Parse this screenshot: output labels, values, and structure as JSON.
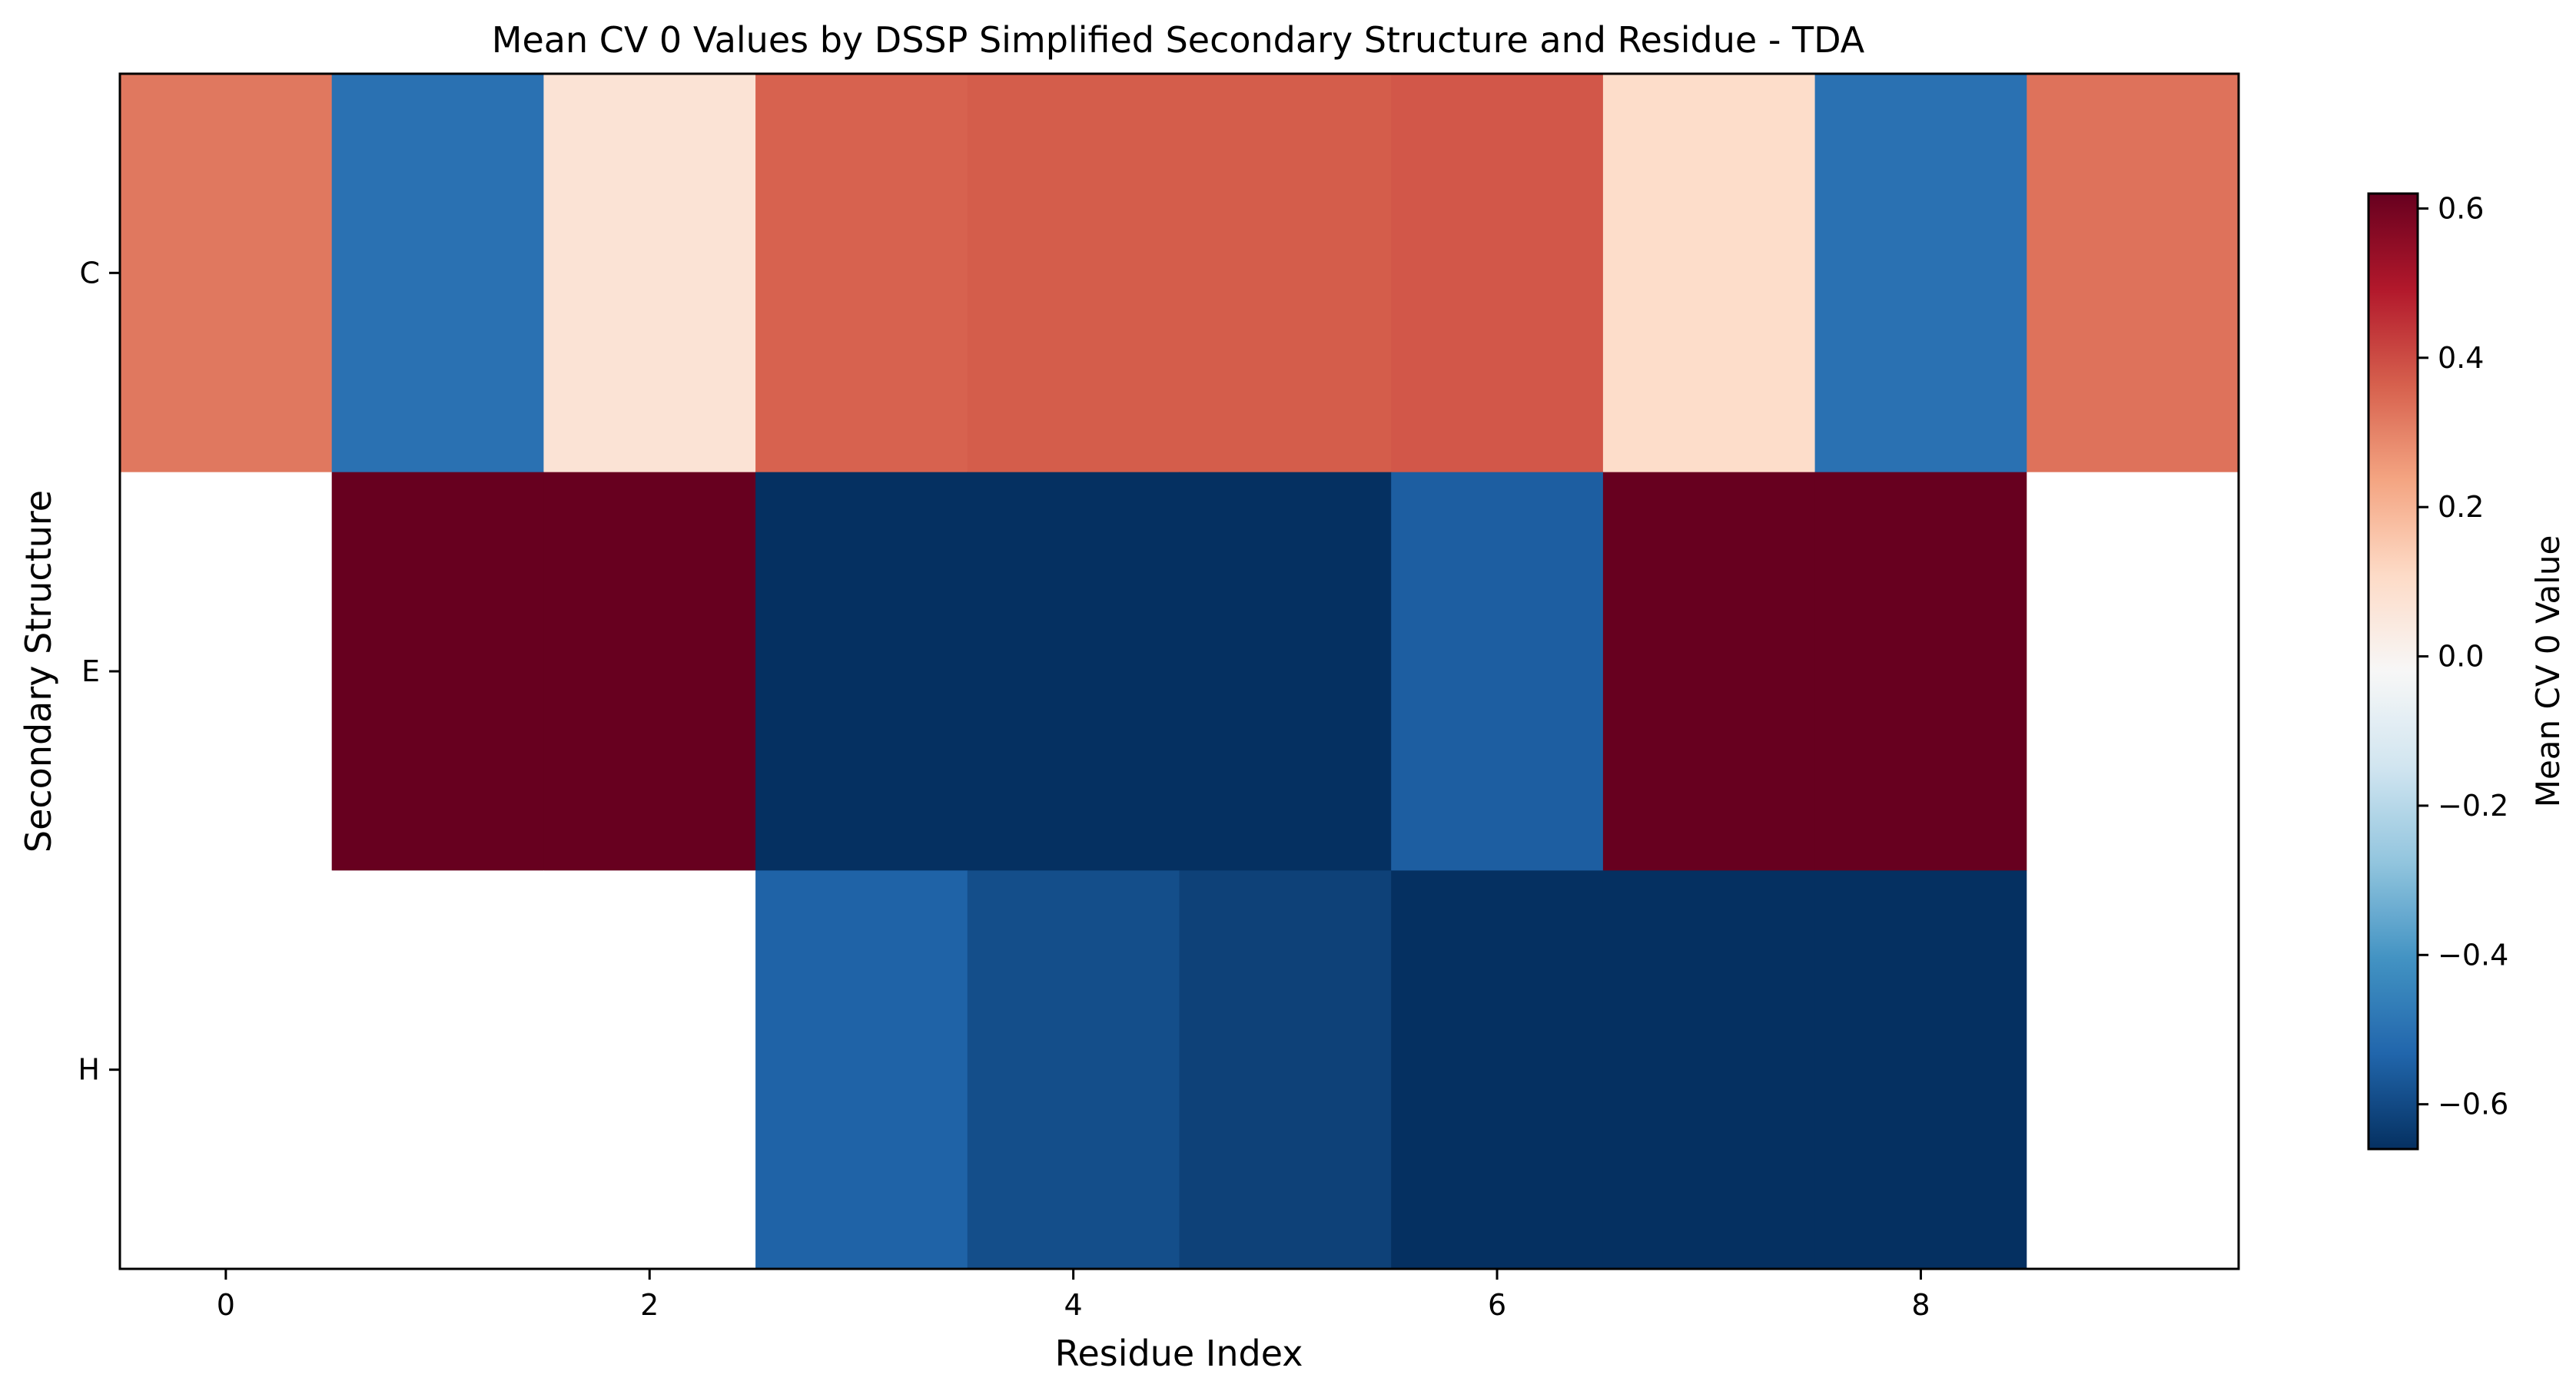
{
  "chart_data": {
    "type": "heatmap",
    "title": "Mean CV 0 Values by DSSP Simplified Secondary Structure and Residue - TDA",
    "xlabel": "Residue Index",
    "ylabel": "Secondary Structure",
    "x": [
      0,
      1,
      2,
      3,
      4,
      5,
      6,
      7,
      8,
      9
    ],
    "y": [
      "C",
      "E",
      "H"
    ],
    "x_ticks": [
      0,
      2,
      4,
      6,
      8
    ],
    "xlim": [
      -0.5,
      9.5
    ],
    "values": [
      [
        0.32,
        -0.5,
        0.07,
        0.36,
        0.37,
        0.37,
        0.38,
        0.1,
        -0.5,
        0.33
      ],
      [
        null,
        0.62,
        0.62,
        -0.66,
        -0.66,
        -0.66,
        -0.55,
        0.62,
        0.62,
        null
      ],
      [
        null,
        null,
        null,
        -0.54,
        -0.59,
        -0.62,
        -0.66,
        -0.66,
        -0.66,
        null
      ]
    ],
    "colorbar": {
      "label": "Mean CV 0 Value",
      "colormap": "RdBu_r",
      "vmin": -0.66,
      "vmax": 0.62,
      "ticks": [
        -0.6,
        -0.4,
        -0.2,
        0.0,
        0.2,
        0.4,
        0.6
      ],
      "tick_labels": [
        "−0.6",
        "−0.4",
        "−0.2",
        "0.0",
        "0.2",
        "0.4",
        "0.6"
      ]
    },
    "missing_color": "#ffffff",
    "grid": false
  }
}
